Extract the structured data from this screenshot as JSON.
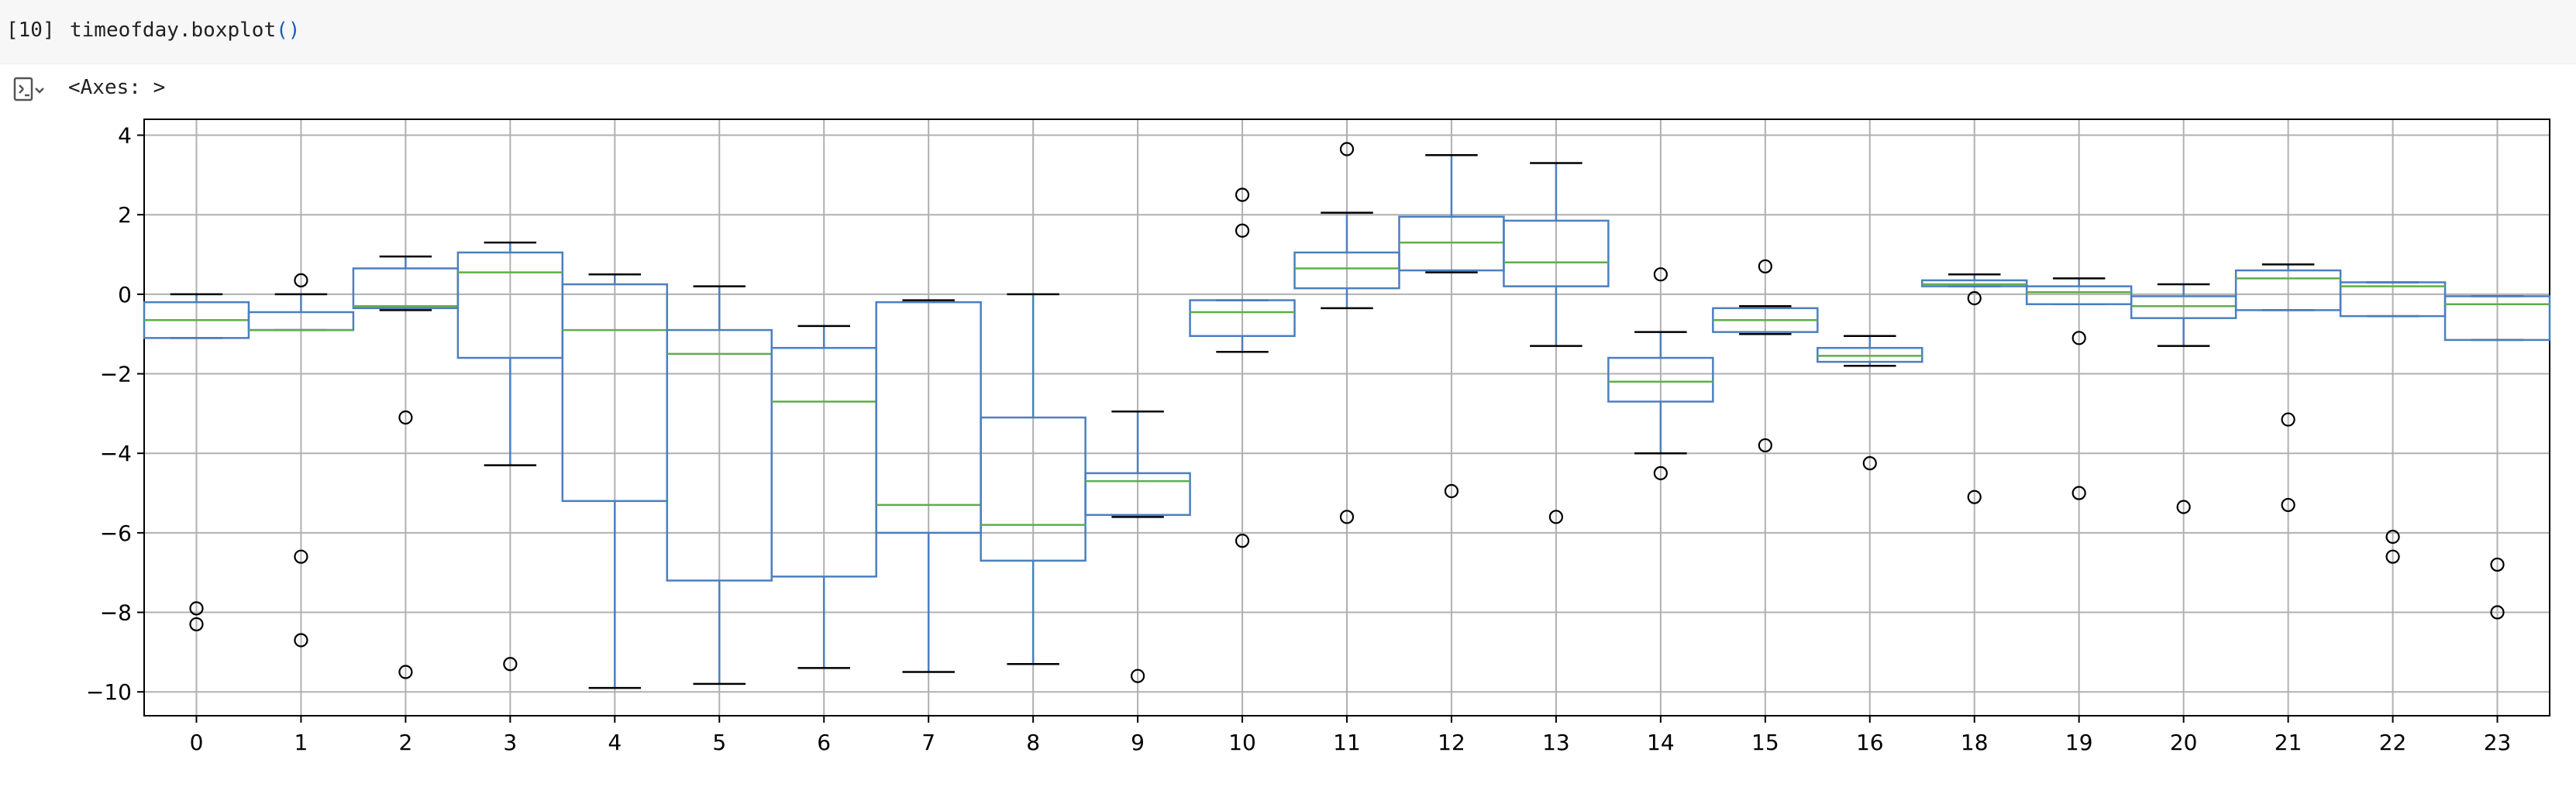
{
  "cell": {
    "execution_count": "[10]",
    "code_object": "timeofday.boxplot",
    "code_parens": "()"
  },
  "output": {
    "icon": "output-toggle-icon",
    "text": "<Axes: >"
  },
  "chart_data": {
    "type": "boxplot",
    "title": "",
    "xlabel": "",
    "ylabel": "",
    "ylim": [
      -10.6,
      4.4
    ],
    "yticks": [
      4,
      2,
      0,
      -2,
      -4,
      -6,
      -8,
      -10
    ],
    "ytick_labels": [
      "4",
      "2",
      "0",
      "−2",
      "−4",
      "−6",
      "−8",
      "−10"
    ],
    "grid": true,
    "box_color": "#4c7fbf",
    "median_color": "#5fae4a",
    "categories": [
      "0",
      "1",
      "2",
      "3",
      "4",
      "5",
      "6",
      "7",
      "8",
      "9",
      "10",
      "11",
      "12",
      "13",
      "14",
      "15",
      "16",
      "18",
      "19",
      "20",
      "21",
      "22",
      "23"
    ],
    "boxes": [
      {
        "label": "0",
        "whislo": -1.1,
        "q1": -1.1,
        "med": -0.65,
        "q3": -0.2,
        "whishi": 0.0,
        "fliers": [
          -7.9,
          -8.3
        ]
      },
      {
        "label": "1",
        "whislo": -0.9,
        "q1": -0.9,
        "med": -0.9,
        "q3": -0.45,
        "whishi": 0.0,
        "fliers": [
          0.35,
          -6.6,
          -8.7
        ]
      },
      {
        "label": "2",
        "whislo": -0.4,
        "q1": -0.35,
        "med": -0.3,
        "q3": 0.65,
        "whishi": 0.95,
        "fliers": [
          -3.1,
          -9.5
        ]
      },
      {
        "label": "3",
        "whislo": -4.3,
        "q1": -1.6,
        "med": 0.55,
        "q3": 1.05,
        "whishi": 1.3,
        "fliers": [
          -9.3
        ]
      },
      {
        "label": "4",
        "whislo": -9.9,
        "q1": -5.2,
        "med": -0.9,
        "q3": 0.25,
        "whishi": 0.5,
        "fliers": []
      },
      {
        "label": "5",
        "whislo": -9.8,
        "q1": -7.2,
        "med": -1.5,
        "q3": -0.9,
        "whishi": 0.2,
        "fliers": []
      },
      {
        "label": "6",
        "whislo": -9.4,
        "q1": -7.1,
        "med": -2.7,
        "q3": -1.35,
        "whishi": -0.8,
        "fliers": []
      },
      {
        "label": "7",
        "whislo": -9.5,
        "q1": -6.0,
        "med": -5.3,
        "q3": -0.2,
        "whishi": -0.15,
        "fliers": []
      },
      {
        "label": "8",
        "whislo": -9.3,
        "q1": -6.7,
        "med": -5.8,
        "q3": -3.1,
        "whishi": 0.0,
        "fliers": []
      },
      {
        "label": "9",
        "whislo": -5.6,
        "q1": -5.55,
        "med": -4.7,
        "q3": -4.5,
        "whishi": -2.95,
        "fliers": [
          -9.6
        ]
      },
      {
        "label": "10",
        "whislo": -1.45,
        "q1": -1.05,
        "med": -0.45,
        "q3": -0.15,
        "whishi": -0.15,
        "fliers": [
          2.5,
          1.6,
          -6.2
        ]
      },
      {
        "label": "11",
        "whislo": -0.35,
        "q1": 0.15,
        "med": 0.65,
        "q3": 1.05,
        "whishi": 2.05,
        "fliers": [
          3.65,
          -5.6
        ]
      },
      {
        "label": "12",
        "whislo": 0.55,
        "q1": 0.6,
        "med": 1.3,
        "q3": 1.95,
        "whishi": 3.5,
        "fliers": [
          -4.95
        ]
      },
      {
        "label": "13",
        "whislo": -1.3,
        "q1": 0.2,
        "med": 0.8,
        "q3": 1.85,
        "whishi": 3.3,
        "fliers": [
          -5.6
        ]
      },
      {
        "label": "14",
        "whislo": -4.0,
        "q1": -2.7,
        "med": -2.2,
        "q3": -1.6,
        "whishi": -0.95,
        "fliers": [
          0.5,
          -4.5
        ]
      },
      {
        "label": "15",
        "whislo": -1.0,
        "q1": -0.95,
        "med": -0.65,
        "q3": -0.35,
        "whishi": -0.3,
        "fliers": [
          0.7,
          -3.8
        ]
      },
      {
        "label": "16",
        "whislo": -1.8,
        "q1": -1.7,
        "med": -1.55,
        "q3": -1.35,
        "whishi": -1.05,
        "fliers": [
          -4.25
        ]
      },
      {
        "label": "18",
        "whislo": 0.2,
        "q1": 0.2,
        "med": 0.25,
        "q3": 0.35,
        "whishi": 0.5,
        "fliers": [
          -0.1,
          -5.1
        ]
      },
      {
        "label": "19",
        "whislo": -0.25,
        "q1": -0.25,
        "med": 0.05,
        "q3": 0.2,
        "whishi": 0.4,
        "fliers": [
          -1.1,
          -5.0
        ]
      },
      {
        "label": "20",
        "whislo": -1.3,
        "q1": -0.6,
        "med": -0.3,
        "q3": -0.05,
        "whishi": 0.25,
        "fliers": [
          -5.35
        ]
      },
      {
        "label": "21",
        "whislo": -0.4,
        "q1": -0.4,
        "med": 0.4,
        "q3": 0.6,
        "whishi": 0.75,
        "fliers": [
          -3.15,
          -5.3
        ]
      },
      {
        "label": "22",
        "whislo": -0.55,
        "q1": -0.55,
        "med": 0.2,
        "q3": 0.3,
        "whishi": 0.3,
        "fliers": [
          -6.1,
          -6.6
        ]
      },
      {
        "label": "23",
        "whislo": -1.15,
        "q1": -1.15,
        "med": -0.25,
        "q3": -0.05,
        "whishi": -0.05,
        "fliers": [
          -6.8,
          -8.0
        ]
      }
    ]
  }
}
